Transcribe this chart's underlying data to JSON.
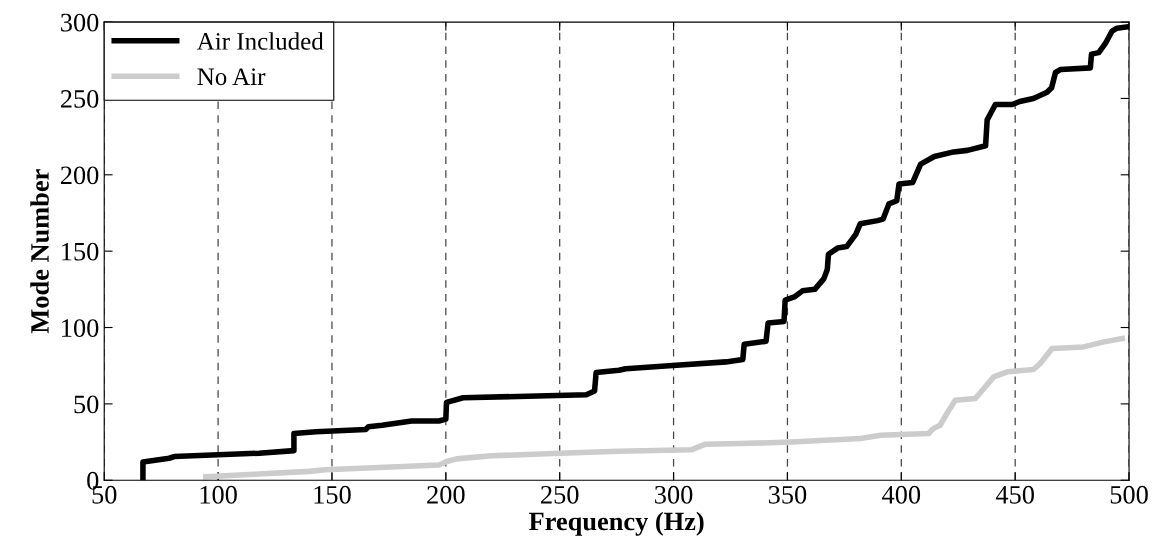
{
  "chart_data": {
    "type": "line",
    "xlabel": "Frequency (Hz)",
    "ylabel": "Mode Number",
    "xlim": [
      50,
      500
    ],
    "ylim": [
      0,
      300
    ],
    "xticks": [
      50,
      100,
      150,
      200,
      250,
      300,
      350,
      400,
      450,
      500
    ],
    "yticks": [
      0,
      50,
      100,
      150,
      200,
      250,
      300
    ],
    "grid": "x",
    "legend": "top left",
    "marker": "none",
    "line_style": "solid",
    "series": [
      {
        "name": "Air Included",
        "color": "#000000",
        "x": [
          67,
          67,
          78.5,
          80.7,
          118,
          133.3,
          133.3,
          143,
          164.8,
          166,
          172,
          185,
          197,
          200,
          200.3,
          207.6,
          261.7,
          265.3,
          266,
          276,
          279,
          298,
          323,
          330.4,
          331,
          340.6,
          341.5,
          348.5,
          349,
          353,
          356.6,
          362,
          366,
          367.5,
          368,
          372,
          376,
          380,
          382,
          389.5,
          392,
          394.6,
          398,
          399,
          405,
          408.5,
          414.5,
          423,
          429,
          437,
          437.7,
          441.3,
          448.7,
          452,
          458,
          464,
          466,
          467.7,
          470,
          483,
          483.5,
          486.7,
          489.6,
          492.5,
          494.7,
          500
        ],
        "values": [
          1.5,
          12,
          14.4,
          15.5,
          17.7,
          19.4,
          30.6,
          31.7,
          33.2,
          35,
          36,
          38.8,
          38.8,
          40,
          51,
          54,
          56,
          58.5,
          70.5,
          72,
          73,
          75,
          77.5,
          79,
          89,
          91,
          103,
          104,
          118,
          120,
          124,
          125,
          132,
          138,
          148,
          152,
          153,
          161,
          168,
          170,
          171,
          181,
          183,
          194,
          195,
          207,
          212,
          215,
          216,
          219,
          236,
          246,
          246,
          248,
          250,
          254,
          257,
          267,
          269,
          270,
          279,
          280,
          286,
          294,
          296,
          297
        ]
      },
      {
        "name": "No Air",
        "color": "#cccccc",
        "x": [
          94.6,
          113.6,
          140,
          147,
          197,
          200,
          204.7,
          220,
          250,
          276,
          308,
          314,
          329.5,
          351.5,
          382,
          391,
          412,
          414,
          417,
          420,
          423.7,
          432.5,
          440.6,
          446.5,
          458,
          461,
          466.2,
          480,
          489,
          497
        ],
        "values": [
          2.2,
          3.7,
          5.8,
          6.9,
          10,
          12,
          14,
          16,
          17.7,
          19,
          20,
          23.6,
          24,
          25,
          27.3,
          29.5,
          30.6,
          33.8,
          36,
          43.7,
          52.4,
          53.5,
          67.7,
          71,
          72.5,
          76.4,
          86.2,
          87.3,
          90.6,
          92.8
        ]
      }
    ]
  }
}
